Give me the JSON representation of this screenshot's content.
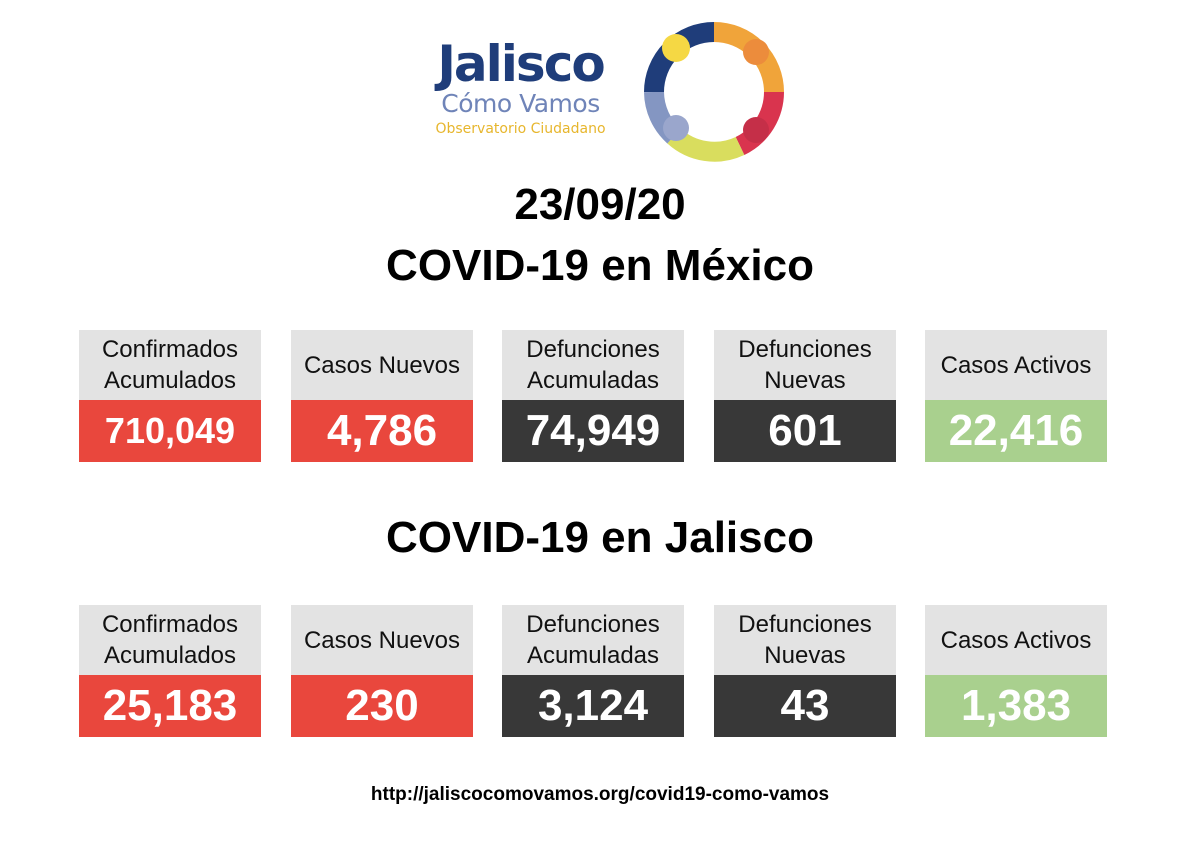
{
  "logo": {
    "title": "Jalisco",
    "subtitle": "Cómo Vamos",
    "tagline": "Observatorio Ciudadano"
  },
  "date": "23/09/20",
  "mexico": {
    "heading": "COVID-19 en México",
    "cards": [
      {
        "label": "Confirmados\nAcumulados",
        "value": "710,049",
        "color": "#e9473d"
      },
      {
        "label": "Casos Nuevos",
        "value": "4,786",
        "color": "#e9473d"
      },
      {
        "label": "Defunciones\nAcumuladas",
        "value": "74,949",
        "color": "#383838"
      },
      {
        "label": "Defunciones\nNuevas",
        "value": "601",
        "color": "#383838"
      },
      {
        "label": "Casos Activos",
        "value": "22,416",
        "color": "#a9d08e"
      }
    ]
  },
  "jalisco": {
    "heading": "COVID-19 en Jalisco",
    "cards": [
      {
        "label": "Confirmados\nAcumulados",
        "value": "25,183",
        "color": "#e9473d"
      },
      {
        "label": "Casos Nuevos",
        "value": "230",
        "color": "#e9473d"
      },
      {
        "label": "Defunciones\nAcumuladas",
        "value": "3,124",
        "color": "#383838"
      },
      {
        "label": "Defunciones\nNuevas",
        "value": "43",
        "color": "#383838"
      },
      {
        "label": "Casos Activos",
        "value": "1,383",
        "color": "#a9d08e"
      }
    ]
  },
  "footer": {
    "url": "http://jaliscocomovamos.org/covid19-como-vamos"
  }
}
